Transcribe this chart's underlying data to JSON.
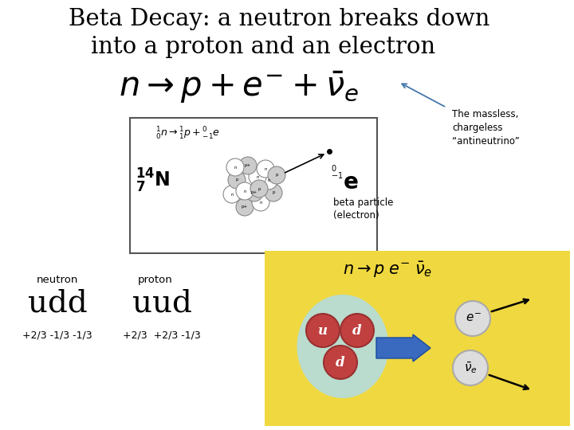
{
  "title_line1": "Beta Decay: a neutron breaks down",
  "title_line2": "into a proton and an electron",
  "title_fontsize": 21,
  "background_color": "#ffffff",
  "antineutrino_label": "The massless,\nchargeless\n“antineutrino”",
  "neutron_label": "neutron",
  "proton_label": "proton",
  "neutron_quark": "udd",
  "proton_quark": "uud",
  "neutron_charge": "+2/3 -1/3 -1/3",
  "proton_charge": "+2/3  +2/3 -1/3",
  "yellow_bg": "#f0d840",
  "cyan_bg": "#b0dde8"
}
